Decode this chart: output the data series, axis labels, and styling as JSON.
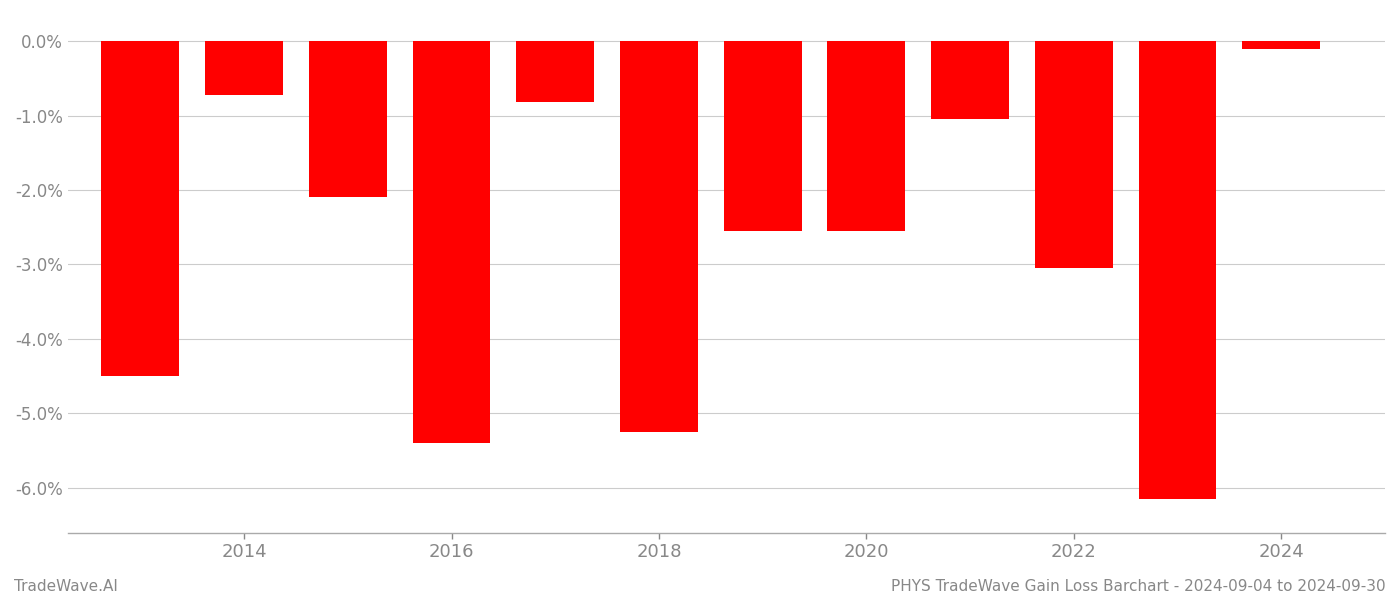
{
  "years": [
    2013,
    2014,
    2015,
    2016,
    2017,
    2018,
    2019,
    2020,
    2021,
    2022,
    2023,
    2024
  ],
  "values": [
    -4.5,
    -0.72,
    -2.1,
    -5.4,
    -0.82,
    -5.25,
    -2.55,
    -2.55,
    -1.05,
    -3.05,
    -6.15,
    -0.1
  ],
  "bar_color": "#ff0000",
  "background_color": "#ffffff",
  "ylim": [
    -6.6,
    0.35
  ],
  "yticks": [
    0.0,
    -1.0,
    -2.0,
    -3.0,
    -4.0,
    -5.0,
    -6.0
  ],
  "footer_left": "TradeWave.AI",
  "footer_right": "PHYS TradeWave Gain Loss Barchart - 2024-09-04 to 2024-09-30",
  "grid_color": "#cccccc",
  "tick_color": "#888888",
  "bar_width": 0.75,
  "xlim_left": 2012.3,
  "xlim_right": 2025.0,
  "xtick_positions": [
    2014,
    2016,
    2018,
    2020,
    2022,
    2024
  ],
  "xtick_labels": [
    "2014",
    "2016",
    "2018",
    "2020",
    "2022",
    "2024"
  ],
  "ytick_fontsize": 12,
  "xtick_fontsize": 13
}
